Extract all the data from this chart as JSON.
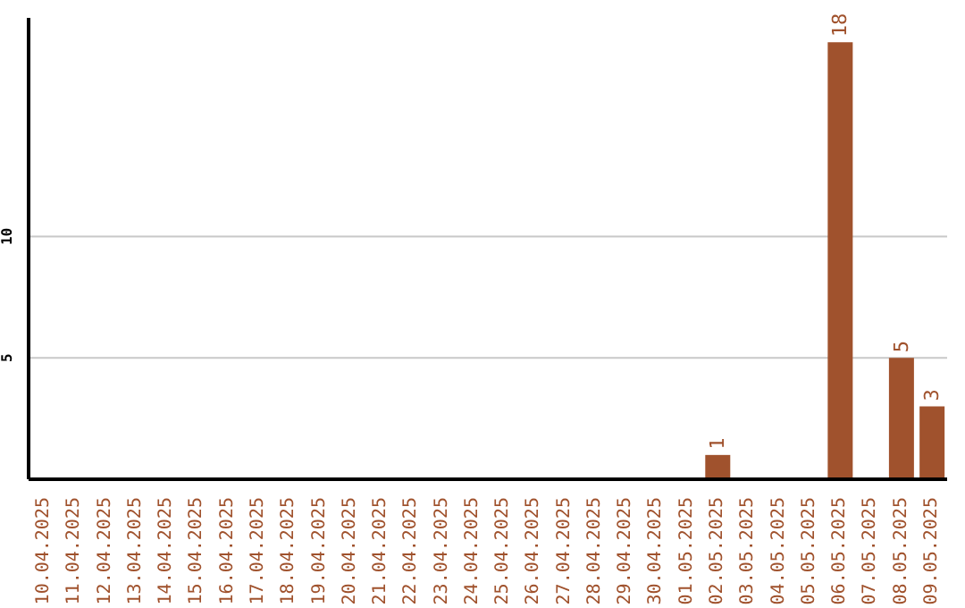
{
  "chart_data": {
    "type": "bar",
    "categories": [
      "10.04.2025",
      "11.04.2025",
      "12.04.2025",
      "13.04.2025",
      "14.04.2025",
      "15.04.2025",
      "16.04.2025",
      "17.04.2025",
      "18.04.2025",
      "19.04.2025",
      "20.04.2025",
      "21.04.2025",
      "22.04.2025",
      "23.04.2025",
      "24.04.2025",
      "25.04.2025",
      "26.04.2025",
      "27.04.2025",
      "28.04.2025",
      "29.04.2025",
      "30.04.2025",
      "01.05.2025",
      "02.05.2025",
      "03.05.2025",
      "04.05.2025",
      "05.05.2025",
      "06.05.2025",
      "07.05.2025",
      "08.05.2025",
      "09.05.2025"
    ],
    "values": [
      0,
      0,
      0,
      0,
      0,
      0,
      0,
      0,
      0,
      0,
      0,
      0,
      0,
      0,
      0,
      0,
      0,
      0,
      0,
      0,
      0,
      0,
      1,
      0,
      0,
      0,
      18,
      0,
      5,
      3
    ],
    "value_labels": [
      null,
      null,
      null,
      null,
      null,
      null,
      null,
      null,
      null,
      null,
      null,
      null,
      null,
      null,
      null,
      null,
      null,
      null,
      null,
      null,
      null,
      null,
      "1",
      null,
      null,
      null,
      "18",
      null,
      "5",
      "3"
    ],
    "color": "#a0522d",
    "ylim": [
      0,
      19
    ],
    "yticks": [
      5,
      10
    ],
    "grid": "y"
  }
}
